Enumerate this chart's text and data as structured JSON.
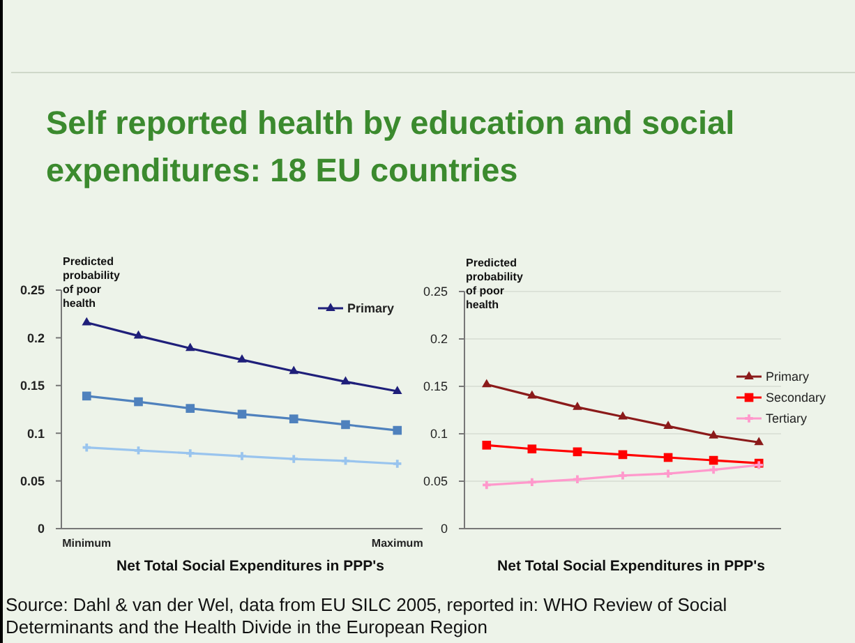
{
  "chart_data": [
    {
      "type": "line",
      "title": "Self reported health by education and social expenditures: 18 EU countries",
      "ylabel": "Predicted probability of poor health",
      "xlabel": "Net Total Social Expenditures in PPP's",
      "annotations": [
        "Source: Dahl & van der Wel, data from EU SILC 2005, reported in: WHO Review of Social Determinants and the Health Divide in the European Region"
      ],
      "categories": [
        "Minimum",
        null,
        null,
        null,
        null,
        null,
        "Maximum"
      ],
      "ylim": [
        0,
        0.25
      ],
      "yticks": [
        0,
        0.05,
        0.1,
        0.15,
        0.2,
        0.25
      ],
      "legend": "top right",
      "series": [
        {
          "name": "Primary",
          "color": "#1f1f7a",
          "marker": "triangle",
          "values": [
            0.216,
            0.202,
            0.189,
            0.177,
            0.165,
            0.154,
            0.144
          ]
        },
        {
          "color": "#4f81bd",
          "marker": "square",
          "values": [
            0.139,
            0.133,
            0.126,
            0.12,
            0.115,
            0.109,
            0.103
          ]
        },
        {
          "color": "#99c4ee",
          "marker": "cross",
          "values": [
            0.085,
            0.082,
            0.079,
            0.076,
            0.073,
            0.071,
            0.068
          ]
        }
      ]
    },
    {
      "type": "line",
      "ylabel": "Predicted probability of poor health",
      "xlabel": "Net Total Social Expenditures in PPP's",
      "categories": [
        null,
        null,
        null,
        null,
        null,
        null,
        null
      ],
      "ylim": [
        0,
        0.25
      ],
      "yticks": [
        0,
        0.05,
        0.1,
        0.15,
        0.2,
        0.25
      ],
      "grid": "y",
      "legend": "right",
      "series": [
        {
          "name": "Primary",
          "color": "#8b1a1a",
          "marker": "triangle",
          "values": [
            0.152,
            0.14,
            0.128,
            0.118,
            0.108,
            0.098,
            0.091
          ]
        },
        {
          "name": "Secondary",
          "color": "#ff0000",
          "marker": "square",
          "values": [
            0.088,
            0.084,
            0.081,
            0.078,
            0.075,
            0.072,
            0.069
          ]
        },
        {
          "name": "Tertiary",
          "color": "#ff99cc",
          "marker": "cross",
          "values": [
            0.046,
            0.049,
            0.052,
            0.056,
            0.058,
            0.062,
            0.067
          ]
        }
      ]
    }
  ]
}
